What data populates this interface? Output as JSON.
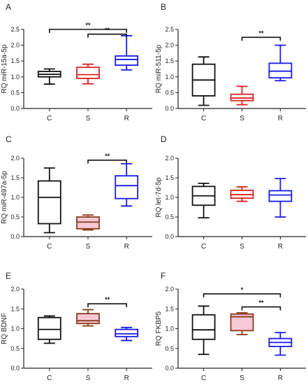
{
  "figure": {
    "colors": {
      "C": "#111111",
      "S": "#e02020",
      "R": "#1a1aee",
      "S_brown": "#8b3a1a",
      "S_fill_pink": "#f6c8d8"
    }
  },
  "chart_data": [
    {
      "panel": "A",
      "type": "box",
      "ylabel": "RQ miR-15a-5p",
      "ylim": [
        0.0,
        2.5
      ],
      "yticks": [
        "0.0",
        "0.5",
        "1.0",
        "1.5",
        "2.0",
        "2.5"
      ],
      "categories": [
        "C",
        "S",
        "R"
      ],
      "boxes": [
        {
          "category": "C",
          "min": 0.77,
          "q1": 1.0,
          "median": 1.08,
          "q3": 1.17,
          "max": 1.25
        },
        {
          "category": "S",
          "min": 0.78,
          "q1": 0.95,
          "median": 1.07,
          "q3": 1.3,
          "max": 1.4
        },
        {
          "category": "R",
          "min": 1.22,
          "q1": 1.37,
          "median": 1.55,
          "q3": 1.66,
          "max": 2.3
        }
      ],
      "significance": [
        {
          "from": "C",
          "to": "R",
          "label": "**",
          "y": 2.5
        },
        {
          "from": "S",
          "to": "R",
          "label": "**",
          "y": 2.35
        }
      ]
    },
    {
      "panel": "B",
      "type": "box",
      "ylabel": "RQ miR-511-5p",
      "ylim": [
        0.0,
        2.5
      ],
      "yticks": [
        "0.0",
        "0.5",
        "1.0",
        "1.5",
        "2.0",
        "2.5"
      ],
      "categories": [
        "C",
        "S",
        "R"
      ],
      "boxes": [
        {
          "category": "C",
          "min": 0.1,
          "q1": 0.4,
          "median": 0.9,
          "q3": 1.4,
          "max": 1.63
        },
        {
          "category": "S",
          "min": 0.12,
          "q1": 0.25,
          "median": 0.33,
          "q3": 0.45,
          "max": 0.7
        },
        {
          "category": "R",
          "min": 0.88,
          "q1": 0.97,
          "median": 1.18,
          "q3": 1.43,
          "max": 2.0
        }
      ],
      "significance": [
        {
          "from": "S",
          "to": "R",
          "label": "**",
          "y": 2.25
        }
      ]
    },
    {
      "panel": "C",
      "type": "box",
      "ylabel": "RQ miR-497a-5p",
      "ylim": [
        0.0,
        2.0
      ],
      "yticks": [
        "0.0",
        "0.5",
        "1.0",
        "1.5",
        "2.0"
      ],
      "categories": [
        "C",
        "S",
        "R"
      ],
      "boxes": [
        {
          "category": "C",
          "min": 0.1,
          "q1": 0.33,
          "median": 1.0,
          "q3": 1.42,
          "max": 1.75
        },
        {
          "category": "S",
          "min": 0.17,
          "q1": 0.2,
          "median": 0.37,
          "q3": 0.5,
          "max": 0.55,
          "style": "brown"
        },
        {
          "category": "R",
          "min": 0.78,
          "q1": 0.97,
          "median": 1.3,
          "q3": 1.55,
          "max": 1.86
        }
      ],
      "significance": [
        {
          "from": "S",
          "to": "R",
          "label": "**",
          "y": 1.95
        }
      ]
    },
    {
      "panel": "D",
      "type": "box",
      "ylabel": "RQ let-7d-5p",
      "ylim": [
        0.0,
        2.0
      ],
      "yticks": [
        "0.0",
        "0.5",
        "1.0",
        "1.5",
        "2.0"
      ],
      "categories": [
        "C",
        "S",
        "R"
      ],
      "boxes": [
        {
          "category": "C",
          "min": 0.48,
          "q1": 0.8,
          "median": 1.04,
          "q3": 1.28,
          "max": 1.36
        },
        {
          "category": "S",
          "min": 0.9,
          "q1": 0.98,
          "median": 1.07,
          "q3": 1.18,
          "max": 1.27
        },
        {
          "category": "R",
          "min": 0.5,
          "q1": 0.9,
          "median": 1.06,
          "q3": 1.17,
          "max": 1.48
        }
      ],
      "significance": []
    },
    {
      "panel": "E",
      "type": "box",
      "ylabel": "RQ BDNF",
      "ylim": [
        0.0,
        2.0
      ],
      "yticks": [
        "0.0",
        "0.5",
        "1.0",
        "1.5",
        "2.0"
      ],
      "categories": [
        "C",
        "S",
        "R"
      ],
      "boxes": [
        {
          "category": "C",
          "min": 0.63,
          "q1": 0.73,
          "median": 0.98,
          "q3": 1.28,
          "max": 1.32
        },
        {
          "category": "S",
          "min": 1.07,
          "q1": 1.13,
          "median": 1.2,
          "q3": 1.38,
          "max": 1.48,
          "style": "brown"
        },
        {
          "category": "R",
          "min": 0.7,
          "q1": 0.8,
          "median": 0.87,
          "q3": 0.98,
          "max": 1.03
        }
      ],
      "significance": [
        {
          "from": "S",
          "to": "R",
          "label": "**",
          "y": 1.63
        }
      ]
    },
    {
      "panel": "F",
      "type": "box",
      "ylabel": "RQ FKBP5",
      "ylim": [
        0.0,
        2.0
      ],
      "yticks": [
        "0.0",
        "0.5",
        "1.0",
        "1.5",
        "2.0"
      ],
      "categories": [
        "C",
        "S",
        "R"
      ],
      "boxes": [
        {
          "category": "C",
          "min": 0.35,
          "q1": 0.73,
          "median": 0.97,
          "q3": 1.35,
          "max": 1.57
        },
        {
          "category": "S",
          "min": 0.85,
          "q1": 0.95,
          "median": 1.3,
          "q3": 1.37,
          "max": 1.4,
          "style": "brown"
        },
        {
          "category": "R",
          "min": 0.33,
          "q1": 0.55,
          "median": 0.65,
          "q3": 0.75,
          "max": 0.9
        }
      ],
      "significance": [
        {
          "from": "C",
          "to": "R",
          "label": "*",
          "y": 1.88
        },
        {
          "from": "S",
          "to": "R",
          "label": "**",
          "y": 1.55
        }
      ]
    }
  ]
}
